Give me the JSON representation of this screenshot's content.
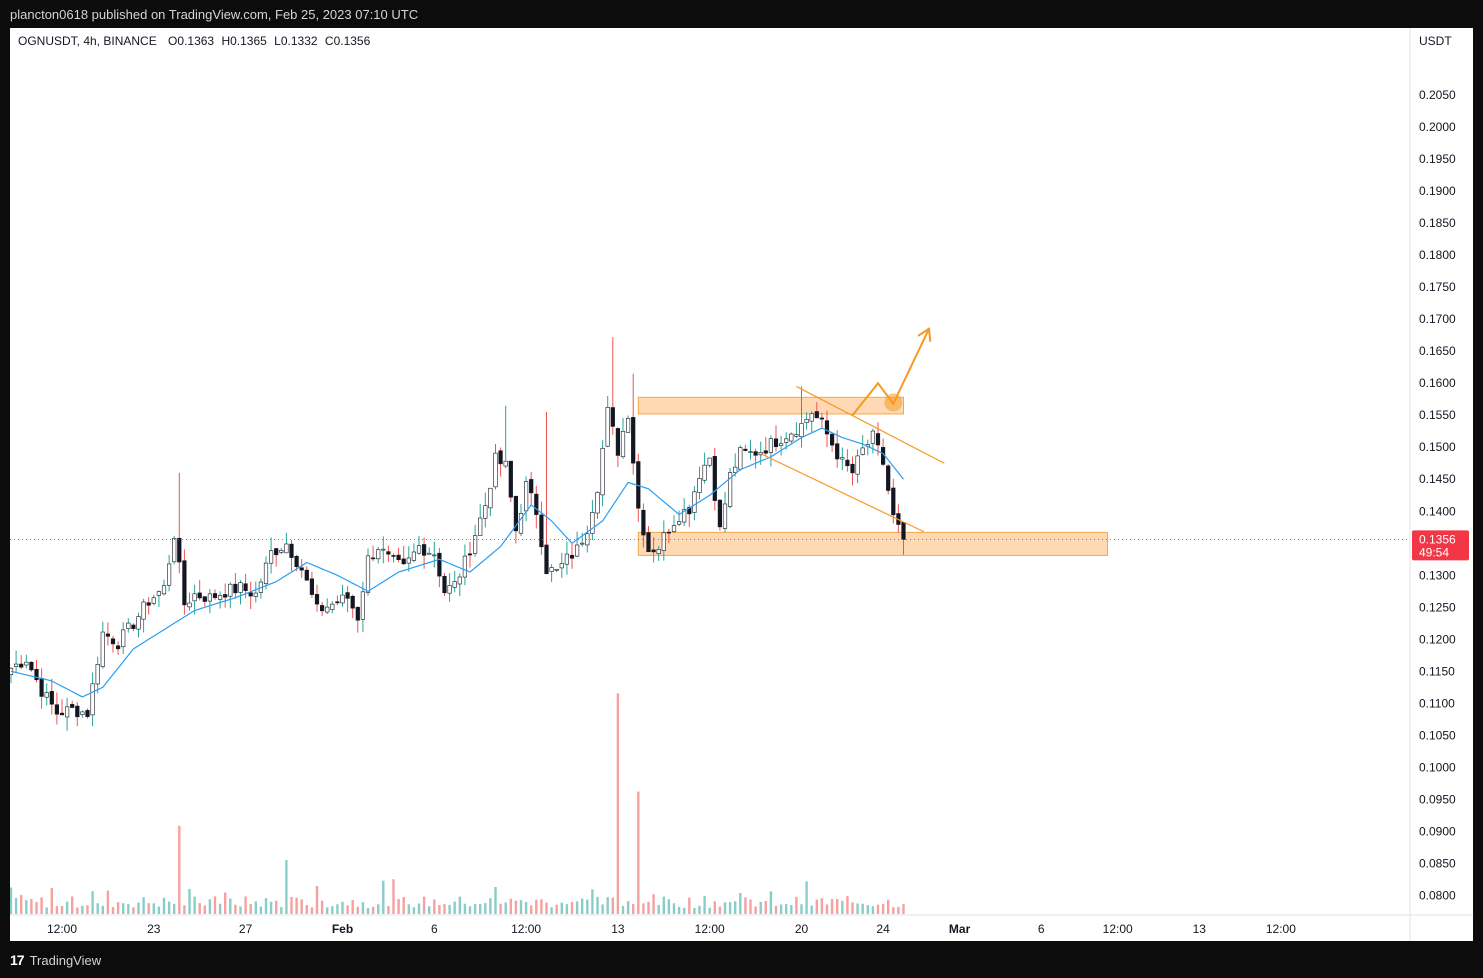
{
  "header": {
    "published_text": "plancton0618 published on TradingView.com, Feb 25, 2023 07:10 UTC"
  },
  "legend": {
    "symbol": "OGNUSDT, 4h, BINANCE",
    "open_label": "O",
    "open": "0.1363",
    "high_label": "H",
    "high": "0.1365",
    "low_label": "L",
    "low": "0.1332",
    "close_label": "C",
    "close": "0.1356"
  },
  "price_axis": {
    "unit": "USDT",
    "last_price": "0.1356",
    "countdown": "49:54",
    "last_price_color": "#f23645"
  },
  "footer": {
    "brand": "TradingView"
  },
  "colors": {
    "up": "#26a69a",
    "down": "#ef5350",
    "candle_body_up": "#ffffff",
    "candle_body_down": "#131722",
    "ema": "#2a9df4",
    "zone_fill": "#ffcc99",
    "zone_border": "#f7a845",
    "drawing": "#f59a23"
  },
  "chart_data": {
    "type": "candlestick",
    "symbol": "OGNUSDT",
    "interval": "4h",
    "exchange": "BINANCE",
    "ylim": [
      0.0785,
      0.2065
    ],
    "y_ticks": [
      "0.2050",
      "0.2000",
      "0.1950",
      "0.1900",
      "0.1850",
      "0.1800",
      "0.1750",
      "0.1700",
      "0.1650",
      "0.1600",
      "0.1550",
      "0.1500",
      "0.1450",
      "0.1400",
      "0.1350",
      "0.1300",
      "0.1250",
      "0.1200",
      "0.1150",
      "0.1100",
      "0.1050",
      "0.1000",
      "0.0950",
      "0.0900",
      "0.0850",
      "0.0800"
    ],
    "x_ticks": [
      "12:00",
      "23",
      "27",
      "Feb",
      "6",
      "12:00",
      "13",
      "12:00",
      "20",
      "24",
      "Mar",
      "6",
      "12:00",
      "13",
      "12:00"
    ],
    "x_tick_bar_index": [
      10,
      28,
      46,
      65,
      83,
      101,
      119,
      137,
      155,
      171,
      186,
      202,
      217,
      233,
      249
    ],
    "close_anchors": [
      [
        0,
        0.1155
      ],
      [
        3,
        0.117
      ],
      [
        6,
        0.112
      ],
      [
        9,
        0.1085
      ],
      [
        12,
        0.109
      ],
      [
        15,
        0.1085
      ],
      [
        18,
        0.121
      ],
      [
        21,
        0.1195
      ],
      [
        24,
        0.1225
      ],
      [
        27,
        0.126
      ],
      [
        30,
        0.128
      ],
      [
        32,
        0.1365
      ],
      [
        34,
        0.1255
      ],
      [
        36,
        0.127
      ],
      [
        39,
        0.1265
      ],
      [
        42,
        0.1275
      ],
      [
        45,
        0.128
      ],
      [
        48,
        0.127
      ],
      [
        51,
        0.1335
      ],
      [
        54,
        0.135
      ],
      [
        57,
        0.131
      ],
      [
        60,
        0.1245
      ],
      [
        63,
        0.1255
      ],
      [
        66,
        0.1265
      ],
      [
        68,
        0.1235
      ],
      [
        70,
        0.1325
      ],
      [
        72,
        0.1345
      ],
      [
        74,
        0.1325
      ],
      [
        77,
        0.131
      ],
      [
        80,
        0.1345
      ],
      [
        83,
        0.1335
      ],
      [
        85,
        0.1275
      ],
      [
        87,
        0.1285
      ],
      [
        89,
        0.132
      ],
      [
        91,
        0.1365
      ],
      [
        93,
        0.141
      ],
      [
        95,
        0.148
      ],
      [
        97,
        0.147
      ],
      [
        99,
        0.137
      ],
      [
        101,
        0.144
      ],
      [
        103,
        0.14
      ],
      [
        105,
        0.131
      ],
      [
        107,
        0.1305
      ],
      [
        109,
        0.1325
      ],
      [
        111,
        0.134
      ],
      [
        113,
        0.1375
      ],
      [
        115,
        0.144
      ],
      [
        117,
        0.1555
      ],
      [
        119,
        0.1495
      ],
      [
        121,
        0.1555
      ],
      [
        123,
        0.1405
      ],
      [
        125,
        0.134
      ],
      [
        127,
        0.1345
      ],
      [
        129,
        0.1375
      ],
      [
        131,
        0.1395
      ],
      [
        133,
        0.1405
      ],
      [
        135,
        0.146
      ],
      [
        137,
        0.1485
      ],
      [
        139,
        0.137
      ],
      [
        141,
        0.1455
      ],
      [
        143,
        0.149
      ],
      [
        145,
        0.149
      ],
      [
        147,
        0.1495
      ],
      [
        149,
        0.1505
      ],
      [
        151,
        0.1515
      ],
      [
        153,
        0.1525
      ],
      [
        155,
        0.1535
      ],
      [
        157,
        0.1555
      ],
      [
        159,
        0.1535
      ],
      [
        161,
        0.1505
      ],
      [
        163,
        0.1475
      ],
      [
        165,
        0.146
      ],
      [
        167,
        0.1495
      ],
      [
        169,
        0.1515
      ],
      [
        171,
        0.1475
      ],
      [
        173,
        0.139
      ],
      [
        175,
        0.1356
      ]
    ],
    "ema_anchors": [
      [
        0,
        0.115
      ],
      [
        8,
        0.1135
      ],
      [
        14,
        0.111
      ],
      [
        18,
        0.1125
      ],
      [
        24,
        0.1185
      ],
      [
        30,
        0.1215
      ],
      [
        36,
        0.1245
      ],
      [
        44,
        0.1265
      ],
      [
        52,
        0.129
      ],
      [
        58,
        0.132
      ],
      [
        64,
        0.13
      ],
      [
        70,
        0.1275
      ],
      [
        76,
        0.1305
      ],
      [
        84,
        0.1325
      ],
      [
        90,
        0.1305
      ],
      [
        96,
        0.1345
      ],
      [
        102,
        0.141
      ],
      [
        106,
        0.1385
      ],
      [
        110,
        0.135
      ],
      [
        116,
        0.1385
      ],
      [
        121,
        0.1445
      ],
      [
        125,
        0.1435
      ],
      [
        131,
        0.1395
      ],
      [
        137,
        0.1425
      ],
      [
        143,
        0.1465
      ],
      [
        149,
        0.1485
      ],
      [
        155,
        0.1515
      ],
      [
        159,
        0.153
      ],
      [
        163,
        0.1515
      ],
      [
        167,
        0.1505
      ],
      [
        171,
        0.149
      ],
      [
        175,
        0.145
      ]
    ],
    "volume_spikes": [
      [
        33,
        0.18
      ],
      [
        54,
        0.11
      ],
      [
        119,
        0.45
      ],
      [
        123,
        0.25
      ]
    ],
    "annotations": {
      "resistance_zone": {
        "from_bar": 123,
        "to_bar": 175,
        "top": 0.1578,
        "bottom": 0.1552
      },
      "support_zone": {
        "from_bar": 123,
        "to_bar": 215,
        "top": 0.1367,
        "bottom": 0.1331
      },
      "channel_upper": [
        [
          154,
          0.1595
        ],
        [
          183,
          0.1475
        ]
      ],
      "channel_lower": [
        [
          147,
          0.149
        ],
        [
          179,
          0.1368
        ]
      ],
      "projection_path": [
        [
          165,
          0.155
        ],
        [
          170,
          0.16
        ],
        [
          173,
          0.1568
        ],
        [
          180,
          0.1685
        ]
      ],
      "projection_marker": [
        173,
        0.157
      ]
    }
  }
}
